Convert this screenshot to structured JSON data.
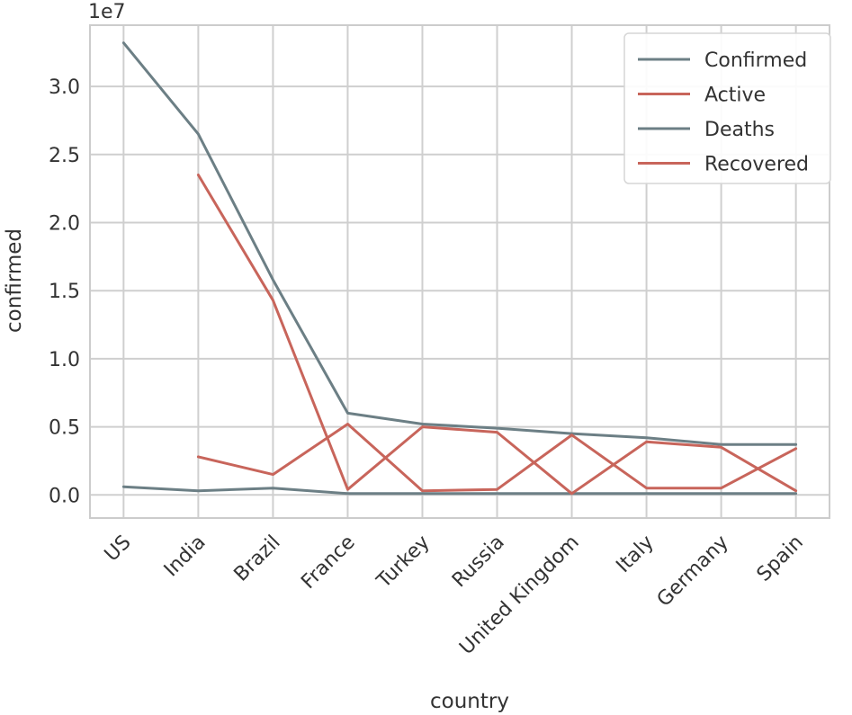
{
  "chart_data": {
    "type": "line",
    "title": "",
    "xlabel": "country",
    "ylabel": "confirmed",
    "y_offset_text": "1e7",
    "categories": [
      "US",
      "India",
      "Brazil",
      "France",
      "Turkey",
      "Russia",
      "United Kingdom",
      "Italy",
      "Germany",
      "Spain"
    ],
    "ylim": [
      -0.17,
      3.45
    ],
    "yticks": [
      0.0,
      0.5,
      1.0,
      1.5,
      2.0,
      2.5,
      3.0
    ],
    "ytick_labels": [
      "0.0",
      "0.5",
      "1.0",
      "1.5",
      "2.0",
      "2.5",
      "3.0"
    ],
    "grid": true,
    "legend_position": "top-right",
    "series": [
      {
        "name": "Confirmed",
        "color": "#6c7f85",
        "values": [
          3.32,
          2.65,
          1.58,
          0.6,
          0.52,
          0.49,
          0.45,
          0.42,
          0.37,
          0.37
        ]
      },
      {
        "name": "Active",
        "color": "#c8655b",
        "values": [
          null,
          0.28,
          0.15,
          0.52,
          0.03,
          0.04,
          0.44,
          0.05,
          0.05,
          0.34
        ]
      },
      {
        "name": "Deaths",
        "color": "#6c7f85",
        "values": [
          0.06,
          0.03,
          0.05,
          0.01,
          0.01,
          0.01,
          0.01,
          0.01,
          0.01,
          0.01
        ]
      },
      {
        "name": "Recovered",
        "color": "#c8655b",
        "values": [
          null,
          2.35,
          1.43,
          0.04,
          0.5,
          0.46,
          0.01,
          0.39,
          0.35,
          0.03
        ]
      }
    ]
  }
}
